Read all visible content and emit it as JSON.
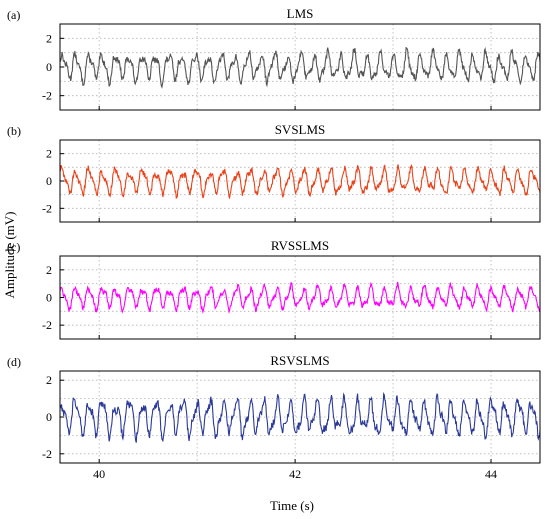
{
  "figure": {
    "ylabel": "Amplitude (mV)",
    "xlabel": "Time (s)"
  },
  "chart_data": [
    {
      "type": "line",
      "panel_label": "(a)",
      "title": "LMS",
      "color": "#555555",
      "xlim": [
        39.6,
        44.5
      ],
      "ylim": [
        -3,
        3
      ],
      "xticks": [
        40,
        42,
        44
      ],
      "yticks": [
        -2,
        0,
        2
      ],
      "xticklabels_shown": false,
      "grid": true,
      "series": [
        {
          "x_start": 39.6,
          "x_end": 44.5,
          "freq_hz": 7.4,
          "amplitude": 1.0,
          "approx_range": [
            -2,
            2
          ]
        }
      ]
    },
    {
      "type": "line",
      "panel_label": "(b)",
      "title": "SVSLMS",
      "color": "#e8431a",
      "xlim": [
        39.6,
        44.5
      ],
      "ylim": [
        -3,
        3
      ],
      "xticks": [
        40,
        42,
        44
      ],
      "yticks": [
        -2,
        0,
        2
      ],
      "xticklabels_shown": false,
      "grid": true,
      "series": [
        {
          "x_start": 39.6,
          "x_end": 44.5,
          "freq_hz": 7.3,
          "amplitude": 0.95,
          "approx_range": [
            -1.4,
            1.4
          ]
        }
      ]
    },
    {
      "type": "line",
      "panel_label": "(c)",
      "title": "RVSSLMS",
      "color": "#ff00ff",
      "xlim": [
        39.6,
        44.5
      ],
      "ylim": [
        -3,
        3
      ],
      "xticks": [
        40,
        42,
        44
      ],
      "yticks": [
        -2,
        0,
        2
      ],
      "xticklabels_shown": false,
      "grid": true,
      "series": [
        {
          "x_start": 39.6,
          "x_end": 44.5,
          "freq_hz": 7.3,
          "amplitude": 0.8,
          "approx_range": [
            -1.5,
            1.2
          ]
        }
      ]
    },
    {
      "type": "line",
      "panel_label": "(d)",
      "title": "RSVSLMS",
      "color": "#2b3a99",
      "xlim": [
        39.6,
        44.5
      ],
      "ylim": [
        -2.5,
        2.5
      ],
      "xticks": [
        40,
        42,
        44
      ],
      "yticks": [
        -2,
        0,
        2
      ],
      "xticklabels_shown": true,
      "grid": true,
      "series": [
        {
          "x_start": 39.6,
          "x_end": 44.5,
          "freq_hz": 7.3,
          "amplitude": 1.0,
          "approx_range": [
            -1.5,
            1.5
          ]
        }
      ]
    }
  ]
}
